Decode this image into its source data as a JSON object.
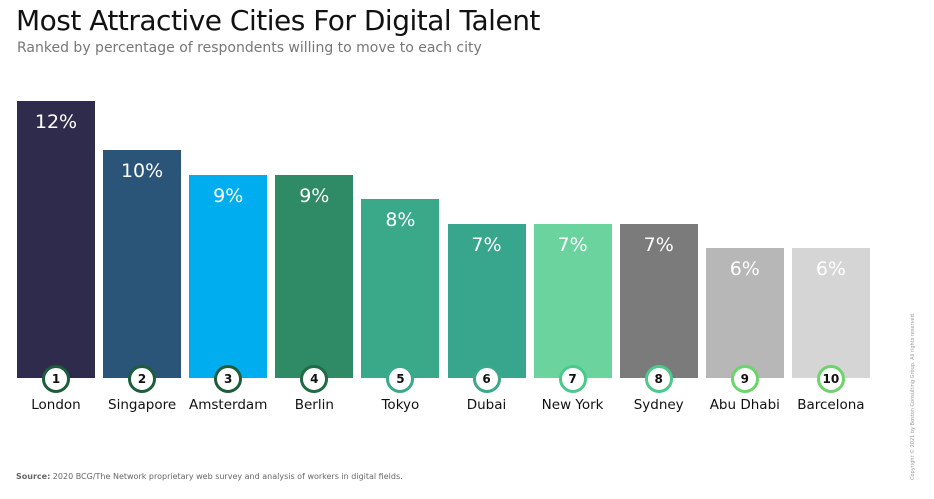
{
  "chart_data": {
    "type": "bar",
    "title": "Most Attractive Cities For Digital Talent",
    "subtitle": "Ranked by percentage of respondents willing to move to each city",
    "categories": [
      "London",
      "Singapore",
      "Amsterdam",
      "Berlin",
      "Tokyo",
      "Dubai",
      "New York",
      "Sydney",
      "Abu Dhabi",
      "Barcelona"
    ],
    "ranks": [
      "1",
      "2",
      "3",
      "4",
      "5",
      "6",
      "7",
      "8",
      "9",
      "10"
    ],
    "values": [
      12,
      10,
      9,
      9,
      8,
      7,
      7,
      7,
      6,
      6
    ],
    "value_labels": [
      "12%",
      "10%",
      "9%",
      "9%",
      "8%",
      "7%",
      "7%",
      "7%",
      "6%",
      "6%"
    ],
    "colors": [
      "#2f2b4d",
      "#2a5578",
      "#00aeef",
      "#2f8a66",
      "#3aa98a",
      "#38a58d",
      "#6bd49e",
      "#7b7b7b",
      "#b7b7b7",
      "#d5d5d5"
    ],
    "ring_colors": [
      "#1c5e3c",
      "#1c5e3c",
      "#1c5e3c",
      "#1f6b45",
      "#3aa98a",
      "#3aa98a",
      "#4cc98a",
      "#4cc98a",
      "#6bd46b",
      "#6bd46b"
    ],
    "ylabel": "",
    "xlabel": "",
    "ylim": [
      0,
      12
    ]
  },
  "footer": {
    "source_label": "Source:",
    "source_text": " 2020 BCG/The Network proprietary web survey and analysis of workers in digital fields.",
    "copyright": "Copyright © 2021 by Boston Consulting Group. All rights reserved."
  }
}
